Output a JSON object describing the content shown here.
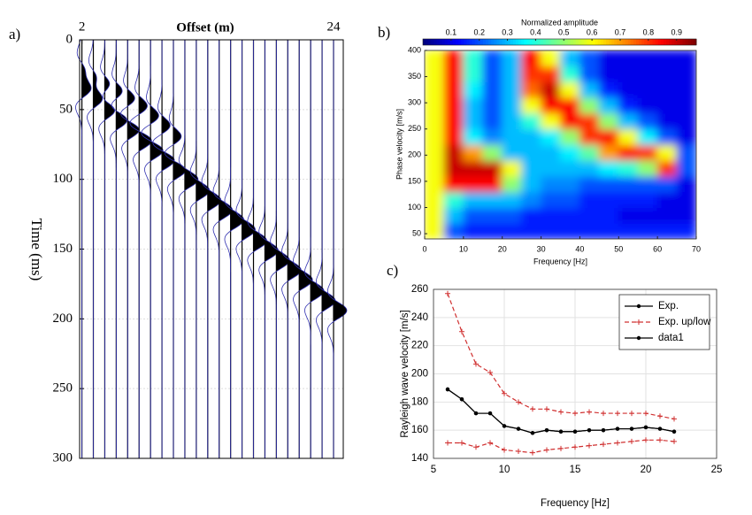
{
  "chart_data": [
    {
      "type": "wiggle",
      "label": "a)",
      "title": "Offset (m)",
      "ylabel": "Time (ms)",
      "x": [
        2,
        3,
        4,
        5,
        6,
        7,
        8,
        9,
        10,
        11,
        12,
        13,
        14,
        15,
        16,
        17,
        18,
        19,
        20,
        21,
        22,
        23,
        24
      ],
      "series": [
        {
          "color": "#000000",
          "values": [
            35,
            42,
            50,
            57,
            64,
            72,
            79,
            86,
            93,
            100,
            108,
            115,
            122,
            129,
            136,
            144,
            151,
            158,
            165,
            172,
            180,
            187,
            194
          ]
        },
        {
          "color": "#000000",
          "values": [
            22,
            28,
            33,
            38,
            43,
            48,
            55,
            62,
            70,
            null,
            null,
            null,
            null,
            null,
            null,
            null,
            null,
            null,
            null,
            null,
            null,
            null,
            null
          ]
        }
      ],
      "trace_color": "#3030b0",
      "xlim": [
        1.8,
        24.85
      ],
      "xticks": [
        2,
        24
      ],
      "ylim": [
        0,
        300
      ],
      "yticks": [
        0,
        50,
        100,
        150,
        200,
        250,
        300
      ],
      "y_inverted": true,
      "grid": true
    },
    {
      "type": "heatmap",
      "label": "b)",
      "xlabel": "Frequency [Hz]",
      "ylabel": "Phase velocity [m/s]",
      "x": [
        2.5,
        7.5,
        12.5,
        17.5,
        22.5,
        27.5,
        32.5,
        37.5,
        42.5,
        47.5,
        52.5,
        57.5,
        62.5,
        67.5
      ],
      "y": [
        55,
        85,
        115,
        145,
        175,
        205,
        235,
        265,
        295,
        325,
        355,
        385
      ],
      "z": [
        [
          0.6,
          0.2,
          0.15,
          0.15,
          0.15,
          0.15,
          0.15,
          0.15,
          0.15,
          0.15,
          0.15,
          0.15,
          0.15,
          0.15
        ],
        [
          0.6,
          0.3,
          0.2,
          0.2,
          0.2,
          0.15,
          0.15,
          0.15,
          0.15,
          0.15,
          0.1,
          0.1,
          0.1,
          0.1
        ],
        [
          0.6,
          0.4,
          0.3,
          0.3,
          0.3,
          0.25,
          0.2,
          0.2,
          0.15,
          0.15,
          0.15,
          0.15,
          0.1,
          0.1
        ],
        [
          0.6,
          0.85,
          0.85,
          0.85,
          0.5,
          0.3,
          0.25,
          0.25,
          0.2,
          0.2,
          0.2,
          0.2,
          0.2,
          0.1
        ],
        [
          0.6,
          0.9,
          0.9,
          0.9,
          0.6,
          0.3,
          0.3,
          0.3,
          0.3,
          0.35,
          0.4,
          0.5,
          0.8,
          0.2
        ],
        [
          0.6,
          0.9,
          0.7,
          0.5,
          0.3,
          0.3,
          0.3,
          0.35,
          0.45,
          0.7,
          0.85,
          0.8,
          0.6,
          0.2
        ],
        [
          0.6,
          0.85,
          0.35,
          0.25,
          0.3,
          0.3,
          0.35,
          0.5,
          0.8,
          0.85,
          0.6,
          0.35,
          0.2,
          0.1
        ],
        [
          0.6,
          0.85,
          0.3,
          0.2,
          0.3,
          0.4,
          0.6,
          0.85,
          0.8,
          0.5,
          0.3,
          0.2,
          0.1,
          0.1
        ],
        [
          0.6,
          0.85,
          0.3,
          0.2,
          0.3,
          0.6,
          0.85,
          0.85,
          0.5,
          0.3,
          0.15,
          0.1,
          0.1,
          0.1
        ],
        [
          0.6,
          0.85,
          0.35,
          0.2,
          0.3,
          0.75,
          0.9,
          0.6,
          0.3,
          0.15,
          0.1,
          0.1,
          0.1,
          0.1
        ],
        [
          0.6,
          0.85,
          0.4,
          0.2,
          0.3,
          0.8,
          0.8,
          0.4,
          0.2,
          0.1,
          0.1,
          0.1,
          0.1,
          0.1
        ],
        [
          0.6,
          0.85,
          0.4,
          0.2,
          0.3,
          0.85,
          0.6,
          0.3,
          0.2,
          0.1,
          0.1,
          0.1,
          0.1,
          0.1
        ]
      ],
      "colormap": "jet",
      "clim": [
        0,
        0.97
      ],
      "cticks": [
        0.1,
        0.2,
        0.3,
        0.4,
        0.5,
        0.6,
        0.7,
        0.8,
        0.9
      ],
      "colorbar_label": "Normalized amplitude",
      "xlim": [
        0,
        70
      ],
      "xticks": [
        0,
        10,
        20,
        30,
        40,
        50,
        60,
        70
      ],
      "ylim": [
        40,
        400
      ],
      "yticks": [
        50,
        100,
        150,
        200,
        250,
        300,
        350,
        400
      ]
    },
    {
      "type": "line",
      "label": "c)",
      "xlabel": "Frequency [Hz]",
      "ylabel": "Rayleigh wave velocity [m/s]",
      "x": [
        6,
        7,
        8,
        9,
        10,
        11,
        12,
        13,
        14,
        15,
        16,
        17,
        18,
        19,
        20,
        21,
        22
      ],
      "series": [
        {
          "name": "data1",
          "color": "#000000",
          "marker": "dot",
          "dash": false,
          "values": [
            189,
            182,
            172,
            172,
            163,
            161,
            158,
            160,
            159,
            159,
            160,
            160,
            161,
            161,
            162,
            161,
            159
          ]
        },
        {
          "name": "Exp.",
          "color": "#000000",
          "marker": "dot",
          "dash": false,
          "values": [
            189,
            182,
            172,
            172,
            163,
            161,
            158,
            160,
            159,
            159,
            160,
            160,
            161,
            161,
            162,
            161,
            159
          ]
        },
        {
          "name": "Exp. up/low",
          "color": "#d03030",
          "marker": "plus",
          "dash": true,
          "values": [
            257,
            230,
            207,
            201,
            186,
            180,
            175,
            175,
            173,
            172,
            173,
            172,
            172,
            172,
            172,
            170,
            168
          ]
        },
        {
          "color": "#d03030",
          "marker": "plus",
          "dash": true,
          "values": [
            151,
            151,
            148,
            151,
            146,
            145,
            144,
            146,
            147,
            148,
            149,
            150,
            151,
            152,
            153,
            153,
            152
          ]
        }
      ],
      "legend_order": [
        1,
        2,
        0
      ],
      "legend": "upper right",
      "xlim": [
        5,
        25
      ],
      "xticks": [
        5,
        10,
        15,
        20,
        25
      ],
      "ylim": [
        140,
        260
      ],
      "yticks": [
        140,
        160,
        180,
        200,
        220,
        240,
        260
      ],
      "grid": true
    }
  ]
}
